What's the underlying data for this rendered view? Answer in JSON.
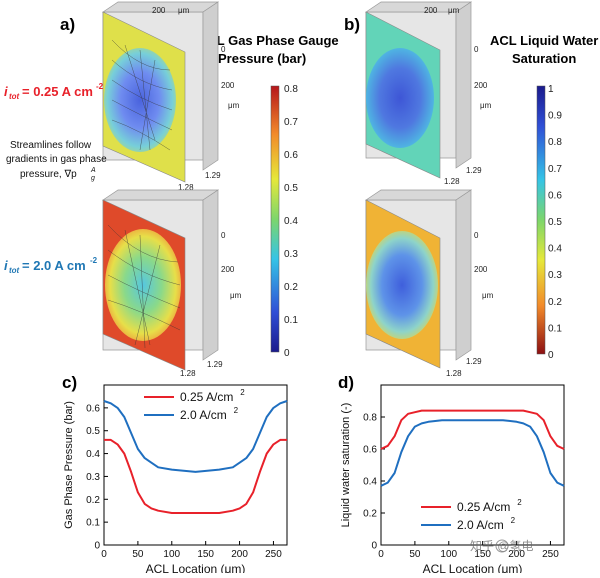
{
  "panel_labels": {
    "a": "a)",
    "b": "b)",
    "c": "c)",
    "d": "d)"
  },
  "colors": {
    "red": "#e8212a",
    "blue": "#1f6fc0",
    "current_low": "#e8212a",
    "current_high": "#1f77b4"
  },
  "panel_a": {
    "title_line1": "ACL Gas Phase Gauge",
    "title_line2": "Pressure (bar)",
    "current_low_label": "= 0.25 A cm",
    "current_high_label": "= 2.0 A cm",
    "itot": "i",
    "itot_sub": "tot",
    "exp": "-2",
    "note_line1": "Streamlines follow",
    "note_line2": "gradients in gas phase",
    "note_line3": "pressure, ∇p",
    "note_sup": "A",
    "note_sub": "g",
    "colorbar_ticks": [
      "0",
      "0.1",
      "0.2",
      "0.3",
      "0.4",
      "0.5",
      "0.6",
      "0.7",
      "0.8"
    ],
    "axis_top": {
      "t200": "200",
      "unit": "μm"
    },
    "axis_side": {
      "t0": "0",
      "t200": "200",
      "unit": "μm"
    },
    "axis_bottom": {
      "t1": "1.28",
      "t2": "1.29"
    }
  },
  "panel_b": {
    "title_line1": "ACL Liquid Water",
    "title_line2": "Saturation",
    "colorbar_ticks": [
      "0",
      "0.1",
      "0.2",
      "0.3",
      "0.4",
      "0.5",
      "0.6",
      "0.7",
      "0.8",
      "0.9",
      "1"
    ],
    "axis_top": {
      "t200": "200",
      "unit": "μm"
    },
    "axis_side": {
      "t0": "0",
      "t200": "200",
      "unit": "μm"
    },
    "axis_bottom": {
      "t1": "1.28",
      "t2": "1.29"
    }
  },
  "watermark": "知乎 @氢电",
  "chart_data": [
    {
      "id": "c",
      "type": "line",
      "title": "",
      "xlabel": "ACL Location (μm)",
      "ylabel": "Gas Phase Pressure (bar)",
      "xlim": [
        0,
        270
      ],
      "ylim": [
        0,
        0.7
      ],
      "xticks": [
        0,
        50,
        100,
        150,
        200,
        250
      ],
      "yticks": [
        0,
        0.1,
        0.2,
        0.3,
        0.4,
        0.5,
        0.6
      ],
      "legend_position": "top-center",
      "series": [
        {
          "name": "0.25 A/cm",
          "sup": "2",
          "color": "#e8212a",
          "x": [
            0,
            10,
            20,
            30,
            40,
            50,
            60,
            70,
            80,
            100,
            135,
            170,
            190,
            200,
            210,
            220,
            230,
            240,
            250,
            260,
            270
          ],
          "y": [
            0.46,
            0.46,
            0.44,
            0.4,
            0.32,
            0.23,
            0.18,
            0.16,
            0.15,
            0.14,
            0.14,
            0.14,
            0.15,
            0.16,
            0.18,
            0.23,
            0.32,
            0.4,
            0.44,
            0.46,
            0.46
          ]
        },
        {
          "name": "2.0 A/cm",
          "sup": "2",
          "color": "#1f6fc0",
          "x": [
            0,
            10,
            20,
            30,
            40,
            50,
            60,
            70,
            80,
            100,
            135,
            170,
            190,
            200,
            210,
            220,
            230,
            240,
            250,
            260,
            270
          ],
          "y": [
            0.63,
            0.62,
            0.6,
            0.56,
            0.49,
            0.42,
            0.38,
            0.36,
            0.34,
            0.33,
            0.32,
            0.33,
            0.34,
            0.36,
            0.38,
            0.42,
            0.49,
            0.56,
            0.6,
            0.62,
            0.63
          ]
        }
      ]
    },
    {
      "id": "d",
      "type": "line",
      "title": "",
      "xlabel": "ACL Location (μm)",
      "ylabel": "Liquid water saturation (-)",
      "xlim": [
        0,
        270
      ],
      "ylim": [
        0,
        1.0
      ],
      "xticks": [
        0,
        50,
        100,
        150,
        200,
        250
      ],
      "yticks": [
        0,
        0.2,
        0.4,
        0.6,
        0.8
      ],
      "legend_position": "bottom-center",
      "series": [
        {
          "name": "0.25 A/cm",
          "sup": "2",
          "color": "#e8212a",
          "x": [
            0,
            10,
            20,
            30,
            40,
            50,
            60,
            80,
            135,
            190,
            210,
            220,
            230,
            240,
            250,
            260,
            270
          ],
          "y": [
            0.6,
            0.62,
            0.68,
            0.78,
            0.82,
            0.83,
            0.84,
            0.84,
            0.84,
            0.84,
            0.84,
            0.83,
            0.82,
            0.78,
            0.68,
            0.62,
            0.6
          ]
        },
        {
          "name": "2.0 A/cm",
          "sup": "2",
          "color": "#1f6fc0",
          "x": [
            0,
            10,
            20,
            30,
            40,
            50,
            60,
            70,
            90,
            135,
            180,
            200,
            210,
            220,
            230,
            240,
            250,
            260,
            270
          ],
          "y": [
            0.37,
            0.39,
            0.45,
            0.58,
            0.68,
            0.74,
            0.76,
            0.77,
            0.78,
            0.78,
            0.78,
            0.77,
            0.76,
            0.74,
            0.68,
            0.58,
            0.45,
            0.39,
            0.37
          ]
        }
      ]
    }
  ]
}
